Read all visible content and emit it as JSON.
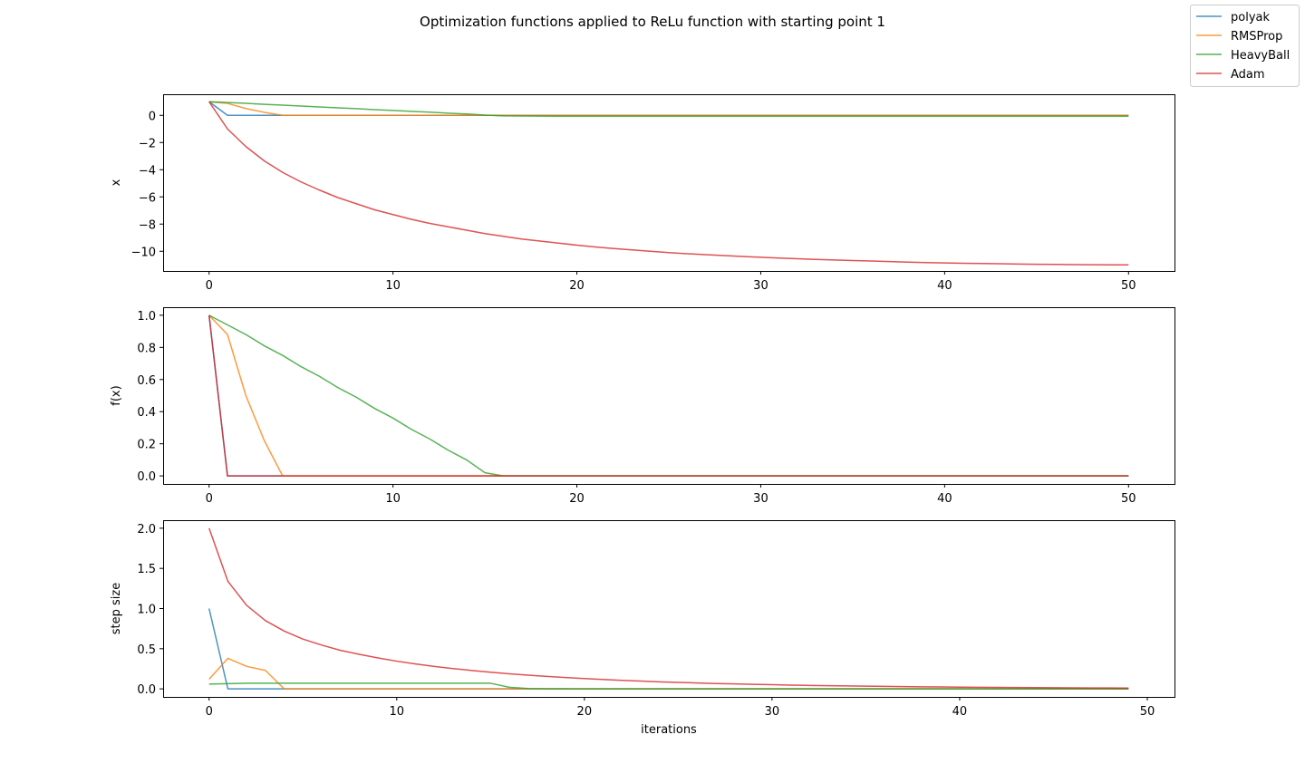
{
  "figure": {
    "title": "Optimization functions applied to ReLu function with starting point 1"
  },
  "legend": {
    "placement": "top-right",
    "entries": [
      {
        "name": "polyak",
        "color": "#1f77b4"
      },
      {
        "name": "RMSProp",
        "color": "#ff7f0e"
      },
      {
        "name": "HeavyBall",
        "color": "#2ca02c"
      },
      {
        "name": "Adam",
        "color": "#d62728"
      }
    ]
  },
  "chart_data": [
    {
      "type": "line",
      "title": "",
      "xlabel": "",
      "ylabel": "x",
      "xlim": [
        -2.5,
        52.5
      ],
      "ylim": [
        -11.45,
        1.55
      ],
      "xticks": [
        0,
        10,
        20,
        30,
        40,
        50
      ],
      "yticks": [
        0,
        -2,
        -4,
        -6,
        -8,
        -10
      ],
      "ytick_labels": [
        "0",
        "−2",
        "−4",
        "−6",
        "−8",
        "−10"
      ],
      "x": [
        0,
        1,
        2,
        3,
        4,
        5,
        6,
        7,
        8,
        9,
        10,
        11,
        12,
        13,
        14,
        15,
        16,
        17,
        18,
        19,
        20,
        21,
        22,
        23,
        24,
        25,
        26,
        27,
        28,
        29,
        30,
        31,
        32,
        33,
        34,
        35,
        36,
        37,
        38,
        39,
        40,
        41,
        42,
        43,
        44,
        45,
        46,
        47,
        48,
        49,
        50
      ],
      "series": [
        {
          "name": "polyak",
          "color": "#1f77b4",
          "values": [
            1,
            0,
            0,
            0,
            0,
            0,
            0,
            0,
            0,
            0,
            0,
            0,
            0,
            0,
            0,
            0,
            0,
            0,
            0,
            0,
            0,
            0,
            0,
            0,
            0,
            0,
            0,
            0,
            0,
            0,
            0,
            0,
            0,
            0,
            0,
            0,
            0,
            0,
            0,
            0,
            0,
            0,
            0,
            0,
            0,
            0,
            0,
            0,
            0,
            0,
            0
          ]
        },
        {
          "name": "RMSProp",
          "color": "#ff7f0e",
          "values": [
            1,
            0.88,
            0.5,
            0.22,
            0,
            0,
            0,
            0,
            0,
            0,
            0,
            0,
            0,
            0,
            0,
            0,
            0,
            0,
            0,
            0,
            0,
            0,
            0,
            0,
            0,
            0,
            0,
            0,
            0,
            0,
            0,
            0,
            0,
            0,
            0,
            0,
            0,
            0,
            0,
            0,
            0,
            0,
            0,
            0,
            0,
            0,
            0,
            0,
            0,
            0,
            0
          ]
        },
        {
          "name": "HeavyBall",
          "color": "#2ca02c",
          "values": [
            1,
            0.94,
            0.88,
            0.81,
            0.75,
            0.68,
            0.62,
            0.55,
            0.49,
            0.42,
            0.36,
            0.29,
            0.23,
            0.16,
            0.1,
            0.02,
            -0.04,
            -0.05,
            -0.06,
            -0.07,
            -0.07,
            -0.07,
            -0.07,
            -0.07,
            -0.07,
            -0.07,
            -0.07,
            -0.07,
            -0.07,
            -0.07,
            -0.07,
            -0.07,
            -0.07,
            -0.07,
            -0.07,
            -0.07,
            -0.07,
            -0.07,
            -0.07,
            -0.07,
            -0.07,
            -0.07,
            -0.07,
            -0.07,
            -0.07,
            -0.07,
            -0.07,
            -0.07,
            -0.07,
            -0.07,
            -0.07
          ]
        },
        {
          "name": "Adam",
          "color": "#d62728",
          "values": [
            1,
            -1.0,
            -2.3,
            -3.35,
            -4.2,
            -4.9,
            -5.5,
            -6.05,
            -6.5,
            -6.95,
            -7.3,
            -7.65,
            -7.95,
            -8.2,
            -8.45,
            -8.7,
            -8.9,
            -9.1,
            -9.25,
            -9.4,
            -9.55,
            -9.68,
            -9.8,
            -9.9,
            -10.0,
            -10.1,
            -10.18,
            -10.25,
            -10.32,
            -10.38,
            -10.44,
            -10.5,
            -10.55,
            -10.6,
            -10.64,
            -10.68,
            -10.72,
            -10.76,
            -10.8,
            -10.83,
            -10.86,
            -10.88,
            -10.9,
            -10.92,
            -10.94,
            -10.96,
            -10.97,
            -10.98,
            -10.99,
            -11.0,
            -11.0
          ]
        }
      ]
    },
    {
      "type": "line",
      "title": "",
      "xlabel": "",
      "ylabel": "f(x)",
      "xlim": [
        -2.5,
        52.5
      ],
      "ylim": [
        -0.05,
        1.05
      ],
      "xticks": [
        0,
        10,
        20,
        30,
        40,
        50
      ],
      "yticks": [
        0.0,
        0.2,
        0.4,
        0.6,
        0.8,
        1.0
      ],
      "ytick_labels": [
        "0.0",
        "0.2",
        "0.4",
        "0.6",
        "0.8",
        "1.0"
      ],
      "x": [
        0,
        1,
        2,
        3,
        4,
        5,
        6,
        7,
        8,
        9,
        10,
        11,
        12,
        13,
        14,
        15,
        16,
        17,
        18,
        19,
        20,
        21,
        22,
        23,
        24,
        25,
        26,
        27,
        28,
        29,
        30,
        31,
        32,
        33,
        34,
        35,
        36,
        37,
        38,
        39,
        40,
        41,
        42,
        43,
        44,
        45,
        46,
        47,
        48,
        49,
        50
      ],
      "series": [
        {
          "name": "polyak",
          "color": "#1f77b4",
          "values": [
            1,
            0,
            0,
            0,
            0,
            0,
            0,
            0,
            0,
            0,
            0,
            0,
            0,
            0,
            0,
            0,
            0,
            0,
            0,
            0,
            0,
            0,
            0,
            0,
            0,
            0,
            0,
            0,
            0,
            0,
            0,
            0,
            0,
            0,
            0,
            0,
            0,
            0,
            0,
            0,
            0,
            0,
            0,
            0,
            0,
            0,
            0,
            0,
            0,
            0,
            0
          ]
        },
        {
          "name": "RMSProp",
          "color": "#ff7f0e",
          "values": [
            1,
            0.88,
            0.5,
            0.22,
            0,
            0,
            0,
            0,
            0,
            0,
            0,
            0,
            0,
            0,
            0,
            0,
            0,
            0,
            0,
            0,
            0,
            0,
            0,
            0,
            0,
            0,
            0,
            0,
            0,
            0,
            0,
            0,
            0,
            0,
            0,
            0,
            0,
            0,
            0,
            0,
            0,
            0,
            0,
            0,
            0,
            0,
            0,
            0,
            0,
            0,
            0
          ]
        },
        {
          "name": "HeavyBall",
          "color": "#2ca02c",
          "values": [
            1,
            0.94,
            0.88,
            0.81,
            0.75,
            0.68,
            0.62,
            0.55,
            0.49,
            0.42,
            0.36,
            0.29,
            0.23,
            0.16,
            0.1,
            0.02,
            0,
            0,
            0,
            0,
            0,
            0,
            0,
            0,
            0,
            0,
            0,
            0,
            0,
            0,
            0,
            0,
            0,
            0,
            0,
            0,
            0,
            0,
            0,
            0,
            0,
            0,
            0,
            0,
            0,
            0,
            0,
            0,
            0,
            0,
            0
          ]
        },
        {
          "name": "Adam",
          "color": "#d62728",
          "values": [
            1,
            0,
            0,
            0,
            0,
            0,
            0,
            0,
            0,
            0,
            0,
            0,
            0,
            0,
            0,
            0,
            0,
            0,
            0,
            0,
            0,
            0,
            0,
            0,
            0,
            0,
            0,
            0,
            0,
            0,
            0,
            0,
            0,
            0,
            0,
            0,
            0,
            0,
            0,
            0,
            0,
            0,
            0,
            0,
            0,
            0,
            0,
            0,
            0,
            0,
            0
          ]
        }
      ]
    },
    {
      "type": "line",
      "title": "",
      "xlabel": "iterations",
      "ylabel": "step size",
      "xlim": [
        -2.45,
        51.45
      ],
      "ylim": [
        -0.1,
        2.1
      ],
      "xticks": [
        0,
        10,
        20,
        30,
        40,
        50
      ],
      "yticks": [
        0.0,
        0.5,
        1.0,
        1.5,
        2.0
      ],
      "ytick_labels": [
        "0.0",
        "0.5",
        "1.0",
        "1.5",
        "2.0"
      ],
      "x": [
        0,
        1,
        2,
        3,
        4,
        5,
        6,
        7,
        8,
        9,
        10,
        11,
        12,
        13,
        14,
        15,
        16,
        17,
        18,
        19,
        20,
        21,
        22,
        23,
        24,
        25,
        26,
        27,
        28,
        29,
        30,
        31,
        32,
        33,
        34,
        35,
        36,
        37,
        38,
        39,
        40,
        41,
        42,
        43,
        44,
        45,
        46,
        47,
        48,
        49
      ],
      "series": [
        {
          "name": "polyak",
          "color": "#1f77b4",
          "values": [
            1.0,
            0,
            0,
            0,
            0,
            0,
            0,
            0,
            0,
            0,
            0,
            0,
            0,
            0,
            0,
            0,
            0,
            0,
            0,
            0,
            0,
            0,
            0,
            0,
            0,
            0,
            0,
            0,
            0,
            0,
            0,
            0,
            0,
            0,
            0,
            0,
            0,
            0,
            0,
            0,
            0,
            0,
            0,
            0,
            0,
            0,
            0,
            0,
            0,
            0
          ]
        },
        {
          "name": "RMSProp",
          "color": "#ff7f0e",
          "values": [
            0.12,
            0.38,
            0.28,
            0.23,
            0,
            0,
            0,
            0,
            0,
            0,
            0,
            0,
            0,
            0,
            0,
            0,
            0,
            0,
            0,
            0,
            0,
            0,
            0,
            0,
            0,
            0,
            0,
            0,
            0,
            0,
            0,
            0,
            0,
            0,
            0,
            0,
            0,
            0,
            0,
            0,
            0,
            0,
            0,
            0,
            0,
            0,
            0,
            0,
            0,
            0
          ]
        },
        {
          "name": "HeavyBall",
          "color": "#2ca02c",
          "values": [
            0.06,
            0.065,
            0.07,
            0.07,
            0.07,
            0.07,
            0.07,
            0.07,
            0.07,
            0.07,
            0.07,
            0.07,
            0.07,
            0.07,
            0.07,
            0.07,
            0.02,
            0.005,
            0.002,
            0.001,
            0,
            0,
            0,
            0,
            0,
            0,
            0,
            0,
            0,
            0,
            0,
            0,
            0,
            0,
            0,
            0,
            0,
            0,
            0,
            0,
            0,
            0,
            0,
            0,
            0,
            0,
            0,
            0,
            0,
            0
          ]
        },
        {
          "name": "Adam",
          "color": "#d62728",
          "values": [
            2.0,
            1.34,
            1.04,
            0.85,
            0.72,
            0.62,
            0.545,
            0.48,
            0.43,
            0.385,
            0.345,
            0.31,
            0.28,
            0.253,
            0.229,
            0.207,
            0.188,
            0.171,
            0.155,
            0.141,
            0.128,
            0.117,
            0.106,
            0.097,
            0.088,
            0.081,
            0.074,
            0.067,
            0.062,
            0.056,
            0.052,
            0.047,
            0.043,
            0.04,
            0.037,
            0.034,
            0.031,
            0.028,
            0.026,
            0.024,
            0.022,
            0.02,
            0.018,
            0.017,
            0.016,
            0.014,
            0.013,
            0.012,
            0.011,
            0.01
          ]
        }
      ]
    }
  ]
}
